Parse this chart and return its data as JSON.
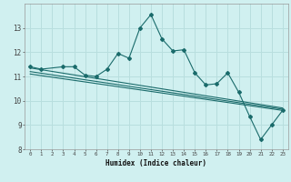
{
  "xlabel": "Humidex (Indice chaleur)",
  "bg_color": "#d0f0f0",
  "grid_color": "#b8dede",
  "line_color": "#1a6b6b",
  "xlim": [
    -0.5,
    23.5
  ],
  "ylim": [
    8,
    14
  ],
  "yticks": [
    8,
    9,
    10,
    11,
    12,
    13
  ],
  "xticks": [
    0,
    1,
    2,
    3,
    4,
    5,
    6,
    7,
    8,
    9,
    10,
    11,
    12,
    13,
    14,
    15,
    16,
    17,
    18,
    19,
    20,
    21,
    22,
    23
  ],
  "x": [
    0,
    1,
    2,
    3,
    4,
    5,
    6,
    7,
    8,
    9,
    10,
    11,
    12,
    13,
    14,
    15,
    16,
    17,
    18,
    19,
    20,
    21,
    22,
    23
  ],
  "series1": [
    11.4,
    11.3,
    null,
    11.4,
    11.4,
    11.05,
    11.0,
    11.3,
    11.95,
    11.75,
    13.0,
    13.55,
    12.55,
    12.05,
    12.1,
    11.15,
    10.65,
    10.7,
    11.15,
    10.35,
    9.35,
    8.4,
    9.0,
    9.6
  ],
  "line2": [
    11.1,
    9.6
  ],
  "line2_x": [
    0,
    23
  ],
  "line3": [
    11.2,
    9.65
  ],
  "line3_x": [
    0,
    23
  ],
  "line4": [
    11.35,
    9.7
  ],
  "line4_x": [
    0,
    23
  ]
}
